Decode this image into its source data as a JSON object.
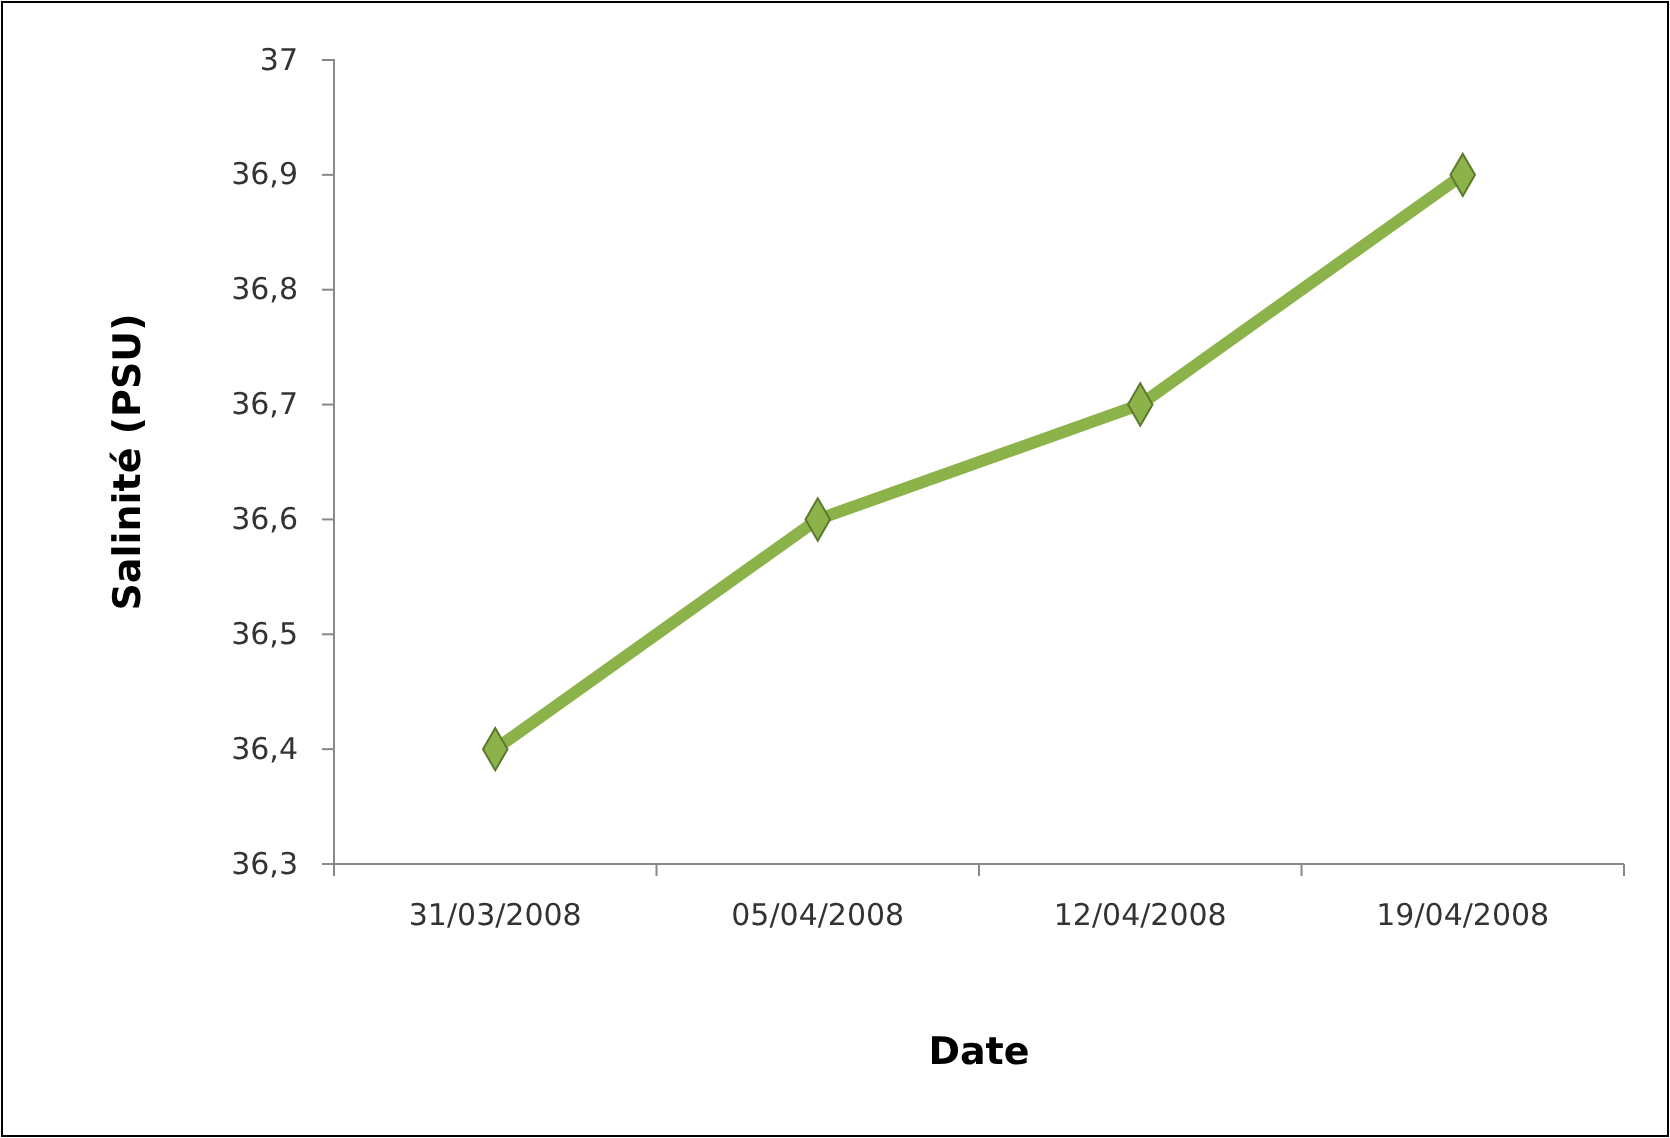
{
  "chart_data": {
    "type": "line",
    "xlabel": "Date",
    "ylabel": "Salinité (PSU)",
    "categories": [
      "31/03/2008",
      "05/04/2008",
      "12/04/2008",
      "19/04/2008"
    ],
    "series": [
      {
        "color": "#8cb24a",
        "values": [
          36.4,
          36.6,
          36.7,
          36.9
        ]
      }
    ],
    "ylim": [
      36.3,
      37
    ],
    "yticks": [
      {
        "value": 36.3,
        "label": "36,3"
      },
      {
        "value": 36.4,
        "label": "36,4"
      },
      {
        "value": 36.5,
        "label": "36,5"
      },
      {
        "value": 36.6,
        "label": "36,6"
      },
      {
        "value": 36.7,
        "label": "36,7"
      },
      {
        "value": 36.8,
        "label": "36,8"
      },
      {
        "value": 36.9,
        "label": "36,9"
      },
      37
    ],
    "marker": "diamond",
    "line_style": "solid"
  }
}
